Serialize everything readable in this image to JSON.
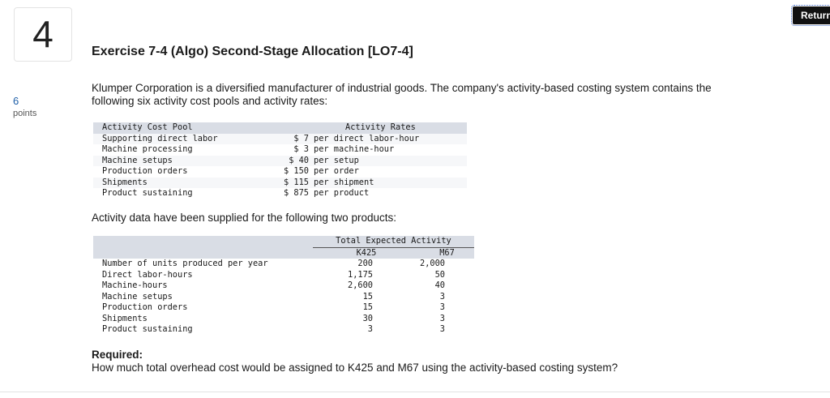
{
  "question": {
    "number": "4",
    "points_value": "6",
    "points_label": "points"
  },
  "return_button": "Return",
  "title": "Exercise 7-4 (Algo) Second-Stage Allocation [LO7-4]",
  "intro": "Klumper Corporation is a diversified manufacturer of industrial goods. The company's activity-based costing system contains the following six activity cost pools and activity rates:",
  "rates_table": {
    "headers": [
      "Activity Cost Pool",
      "Activity Rates"
    ],
    "rows": [
      {
        "pool": "Supporting direct labor",
        "rate": "$ 7",
        "unit": "per direct labor-hour"
      },
      {
        "pool": "Machine processing",
        "rate": "$ 3",
        "unit": "per machine-hour"
      },
      {
        "pool": "Machine setups",
        "rate": "$ 40",
        "unit": "per setup"
      },
      {
        "pool": "Production orders",
        "rate": "$ 150",
        "unit": "per order"
      },
      {
        "pool": "Shipments",
        "rate": "$ 115",
        "unit": "per shipment"
      },
      {
        "pool": "Product sustaining",
        "rate": "$ 875",
        "unit": "per product"
      }
    ]
  },
  "activity_intro": "Activity data have been supplied for the following two products:",
  "activity_table": {
    "group_header": "Total Expected Activity",
    "columns": [
      "K425",
      "M67"
    ],
    "rows": [
      {
        "label": "Number of units produced per year",
        "k425": "200",
        "m67": "2,000"
      },
      {
        "label": "Direct labor-hours",
        "k425": "1,175",
        "m67": "50"
      },
      {
        "label": "Machine-hours",
        "k425": "2,600",
        "m67": "40"
      },
      {
        "label": "Machine setups",
        "k425": "15",
        "m67": "3"
      },
      {
        "label": "Production orders",
        "k425": "15",
        "m67": "3"
      },
      {
        "label": "Shipments",
        "k425": "30",
        "m67": "3"
      },
      {
        "label": "Product sustaining",
        "k425": "3",
        "m67": "3"
      }
    ]
  },
  "required_label": "Required:",
  "required_text": "How much total overhead cost would be assigned to K425 and M67 using the activity-based costing system?"
}
